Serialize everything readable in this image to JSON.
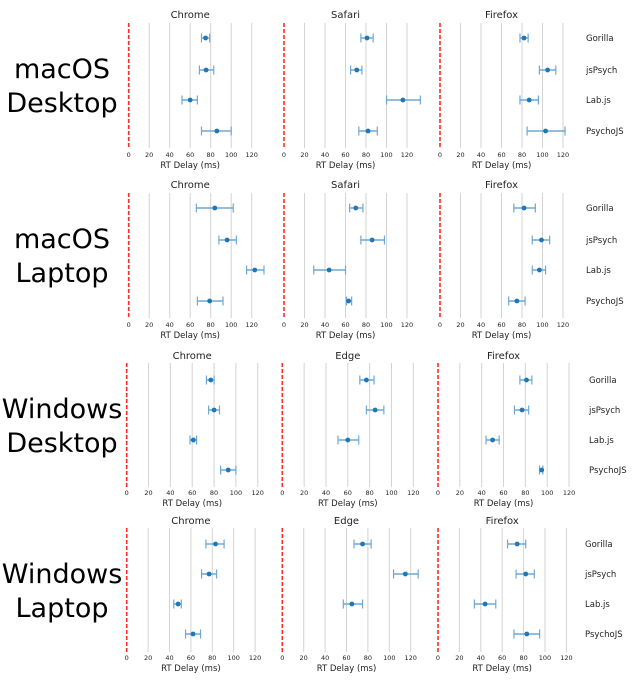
{
  "chart_data": [
    {
      "type": "errorbar",
      "row_label": [
        "macOS",
        "Desktop"
      ],
      "frameworks": [
        "Gorilla",
        "jsPsych",
        "Lab.js",
        "PsychoJS"
      ],
      "xlabel": "RT Delay (ms)",
      "xticks": [
        0,
        20,
        40,
        60,
        80,
        100,
        120
      ],
      "xlim": [
        0,
        135
      ],
      "reference_line": {
        "x": 0,
        "color": "#ff2a2a",
        "style": "dashed"
      },
      "grid": "vertical",
      "color": "#1f77b4",
      "panels": [
        {
          "title": "Chrome",
          "mean": [
            75,
            75.5,
            60,
            86
          ],
          "low": [
            71,
            69,
            52,
            71
          ],
          "high": [
            79,
            83,
            67,
            100
          ]
        },
        {
          "title": "Safari",
          "mean": [
            81,
            71,
            116,
            82
          ],
          "low": [
            75,
            65,
            100,
            73
          ],
          "high": [
            87,
            76,
            133,
            91
          ]
        },
        {
          "title": "Firefox",
          "mean": [
            82,
            105,
            87,
            103
          ],
          "low": [
            78,
            97,
            78,
            85
          ],
          "high": [
            86,
            113,
            96,
            122
          ]
        }
      ]
    },
    {
      "type": "errorbar",
      "row_label": [
        "macOS",
        "Laptop"
      ],
      "frameworks": [
        "Gorilla",
        "jsPsych",
        "Lab.js",
        "PsychoJS"
      ],
      "xlabel": "RT Delay (ms)",
      "xticks": [
        0,
        20,
        40,
        60,
        80,
        100,
        120
      ],
      "xlim": [
        0,
        135
      ],
      "reference_line": {
        "x": 0,
        "color": "#ff2a2a",
        "style": "dashed"
      },
      "grid": "vertical",
      "color": "#1f77b4",
      "panels": [
        {
          "title": "Chrome",
          "mean": [
            84,
            96,
            123,
            79
          ],
          "low": [
            66,
            88,
            115,
            67
          ],
          "high": [
            102,
            105,
            132,
            92
          ]
        },
        {
          "title": "Safari",
          "mean": [
            70,
            86,
            44,
            63
          ],
          "low": [
            64,
            75,
            29,
            61
          ],
          "high": [
            77,
            98,
            60,
            66
          ]
        },
        {
          "title": "Firefox",
          "mean": [
            82,
            99,
            97,
            75
          ],
          "low": [
            72,
            90,
            90,
            67
          ],
          "high": [
            93,
            107,
            103,
            83
          ]
        }
      ]
    },
    {
      "type": "errorbar",
      "row_label": [
        "Windows",
        "Desktop"
      ],
      "frameworks": [
        "Gorilla",
        "jsPsych",
        "Lab.js",
        "PsychoJS"
      ],
      "xlabel": "RT Delay (ms)",
      "xticks": [
        0,
        20,
        40,
        60,
        80,
        100,
        120
      ],
      "xlim": [
        0,
        135
      ],
      "reference_line": {
        "x": 0,
        "color": "#ff2a2a",
        "style": "dashed"
      },
      "grid": "vertical",
      "color": "#1f77b4",
      "panels": [
        {
          "title": "Chrome",
          "mean": [
            77,
            80,
            61,
            93
          ],
          "low": [
            73,
            75,
            58,
            86
          ],
          "high": [
            80,
            85,
            64,
            100
          ]
        },
        {
          "title": "Edge",
          "mean": [
            77,
            85,
            60,
            null
          ],
          "low": [
            71,
            77,
            51,
            null
          ],
          "high": [
            84,
            93,
            70,
            null
          ]
        },
        {
          "title": "Firefox",
          "mean": [
            81,
            77,
            50,
            95
          ],
          "low": [
            75,
            70,
            44,
            93
          ],
          "high": [
            86,
            83,
            56,
            96
          ]
        }
      ]
    },
    {
      "type": "errorbar",
      "row_label": [
        "Windows",
        "Laptop"
      ],
      "frameworks": [
        "Gorilla",
        "jsPsych",
        "Lab.js",
        "PsychoJS"
      ],
      "xlabel": "RT Delay (ms)",
      "xticks": [
        0,
        20,
        40,
        60,
        80,
        100,
        120
      ],
      "xlim": [
        0,
        135
      ],
      "reference_line": {
        "x": 0,
        "color": "#ff2a2a",
        "style": "dashed"
      },
      "grid": "vertical",
      "color": "#1f77b4",
      "panels": [
        {
          "title": "Chrome",
          "mean": [
            83,
            77,
            48,
            62
          ],
          "low": [
            74,
            70,
            44,
            55
          ],
          "high": [
            91,
            84,
            51,
            69
          ]
        },
        {
          "title": "Edge",
          "mean": [
            75,
            115,
            65,
            null
          ],
          "low": [
            67,
            104,
            57,
            null
          ],
          "high": [
            83,
            127,
            75,
            null
          ]
        },
        {
          "title": "Firefox",
          "mean": [
            74,
            82,
            44,
            83
          ],
          "low": [
            65,
            73,
            34,
            71
          ],
          "high": [
            82,
            90,
            54,
            95
          ]
        }
      ]
    }
  ]
}
